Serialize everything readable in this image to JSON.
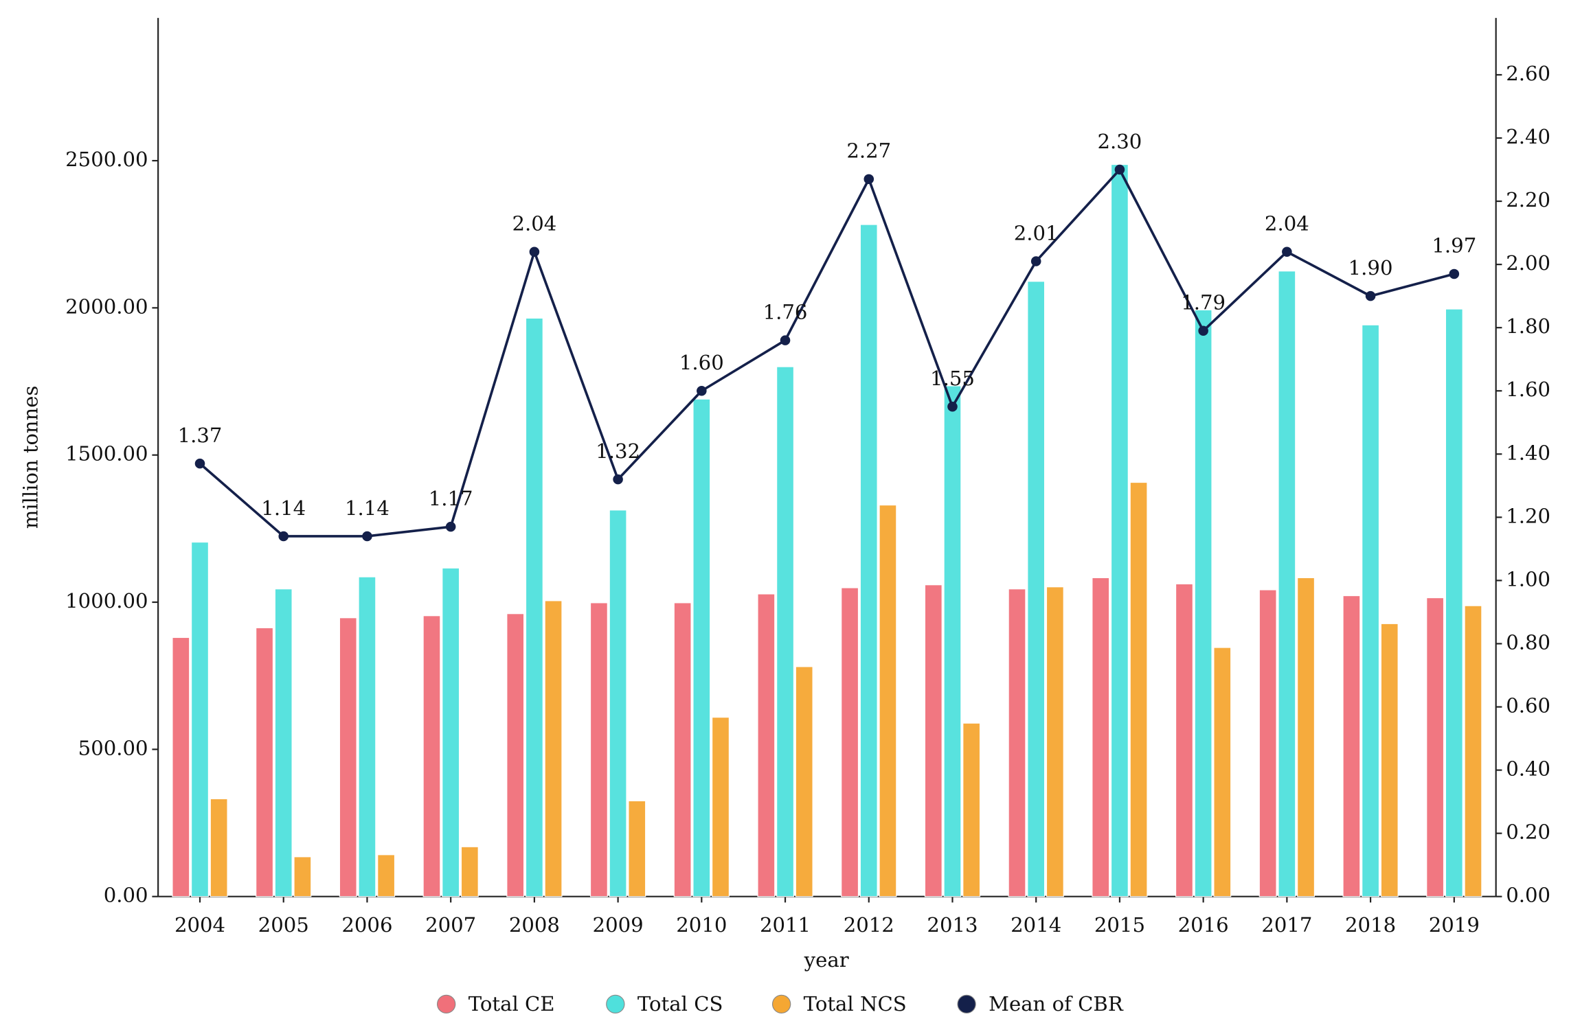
{
  "chart_data": {
    "type": "bar",
    "categories": [
      "2004",
      "2005",
      "2006",
      "2007",
      "2008",
      "2009",
      "2010",
      "2011",
      "2012",
      "2013",
      "2014",
      "2015",
      "2016",
      "2017",
      "2018",
      "2019"
    ],
    "xlabel": "year",
    "ylabel": "million tonnes",
    "ylim": [
      0,
      2985
    ],
    "yticks": [
      {
        "value": 0,
        "label": "0.00"
      },
      {
        "value": 500,
        "label": "500.00"
      },
      {
        "value": 1000,
        "label": "1000.00"
      },
      {
        "value": 1500,
        "label": "1500.00"
      },
      {
        "value": 2000,
        "label": "2000.00"
      },
      {
        "value": 2500,
        "label": "2500.00"
      }
    ],
    "y2lim": [
      0,
      2.78
    ],
    "y2ticks": [
      {
        "value": 0,
        "label": "0.00"
      },
      {
        "value": 0.2,
        "label": "0.20"
      },
      {
        "value": 0.4,
        "label": "0.40"
      },
      {
        "value": 0.6,
        "label": "0.60"
      },
      {
        "value": 0.8,
        "label": "0.80"
      },
      {
        "value": 1,
        "label": "1.00"
      },
      {
        "value": 1.2,
        "label": "1.20"
      },
      {
        "value": 1.4,
        "label": "1.40"
      },
      {
        "value": 1.6,
        "label": "1.60"
      },
      {
        "value": 1.8,
        "label": "1.80"
      },
      {
        "value": 2,
        "label": "2.00"
      },
      {
        "value": 2.2,
        "label": "2.20"
      },
      {
        "value": 2.4,
        "label": "2.40"
      },
      {
        "value": 2.6,
        "label": "2.60"
      }
    ],
    "legend": "bottom",
    "series": [
      {
        "name": "Total CE",
        "color": "#f0707a",
        "values": [
          880,
          913,
          947,
          954,
          961,
          998,
          998,
          1028,
          1049,
          1059,
          1045,
          1083,
          1062,
          1042,
          1022,
          1015
        ]
      },
      {
        "name": "Total CS",
        "color": "#4fe0dc",
        "values": [
          1204,
          1045,
          1086,
          1116,
          1965,
          1313,
          1690,
          1800,
          2283,
          1735,
          2090,
          2487,
          1993,
          2125,
          1942,
          1996
        ]
      },
      {
        "name": "Total NCS",
        "color": "#f5a733",
        "values": [
          332,
          135,
          142,
          169,
          1005,
          325,
          609,
          781,
          1330,
          589,
          1052,
          1407,
          846,
          1083,
          927,
          988
        ]
      },
      {
        "name": "Mean of CBR",
        "color": "#14204a",
        "type": "line",
        "axis": "y2",
        "values": [
          1.37,
          1.14,
          1.14,
          1.17,
          2.04,
          1.32,
          1.6,
          1.76,
          2.27,
          1.55,
          2.01,
          2.3,
          1.79,
          2.04,
          1.9,
          1.97
        ],
        "value_labels": [
          "1.37",
          "1.14",
          "1.14",
          "1.17",
          "2.04",
          "1.32",
          "1.60",
          "1.76",
          "2.27",
          "1.55",
          "2.01",
          "2.30",
          "1.79",
          "2.04",
          "1.90",
          "1.97"
        ]
      }
    ]
  }
}
